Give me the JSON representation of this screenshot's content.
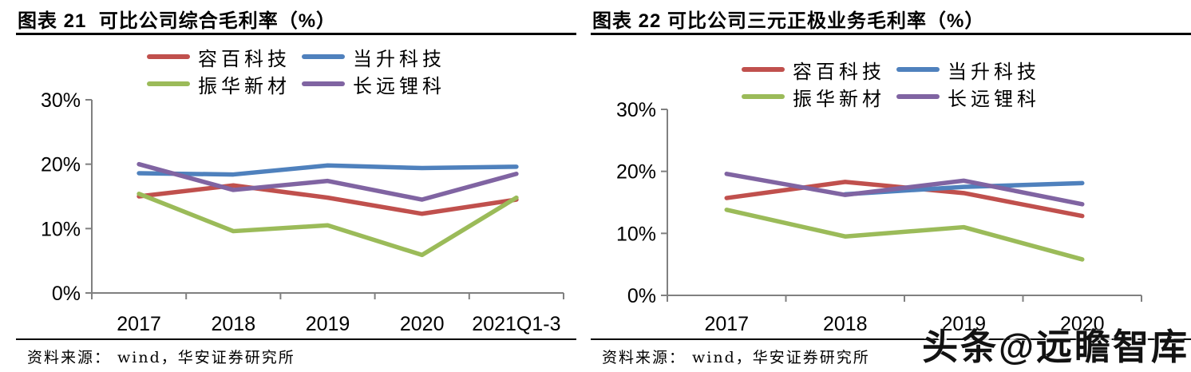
{
  "watermark": "头条@远瞻智库",
  "panels": [
    {
      "title": "图表 21  可比公司综合毛利率（%）",
      "source": "资料来源： wind，华安证券研究所"
    },
    {
      "title": "图表 22 可比公司三元正极业务毛利率（%）",
      "source": "资料来源： wind，华安证券研究所"
    }
  ],
  "chart_data": [
    {
      "type": "line",
      "title": "可比公司综合毛利率（%）",
      "categories": [
        "2017",
        "2018",
        "2019",
        "2020",
        "2021Q1-3"
      ],
      "series": [
        {
          "name": "容百科技",
          "color": "#C0504D",
          "values": [
            15.0,
            16.7,
            14.8,
            12.3,
            14.5
          ]
        },
        {
          "name": "当升科技",
          "color": "#4F81BD",
          "values": [
            18.6,
            18.4,
            19.8,
            19.4,
            19.6
          ]
        },
        {
          "name": "振华新材",
          "color": "#9BBB59",
          "values": [
            15.4,
            9.6,
            10.5,
            5.9,
            14.8
          ]
        },
        {
          "name": "长远锂科",
          "color": "#8064A2",
          "values": [
            20.0,
            16.0,
            17.4,
            14.5,
            18.5
          ]
        }
      ],
      "ylim": [
        0,
        30
      ],
      "yticks": [
        0,
        10,
        20,
        30
      ],
      "ytick_labels": [
        "0%",
        "10%",
        "20%",
        "30%"
      ],
      "legend_position": "top",
      "grid": false,
      "axis_color": "#808080"
    },
    {
      "type": "line",
      "title": "可比公司三元正极业务毛利率（%）",
      "categories": [
        "2017",
        "2018",
        "2019",
        "2020"
      ],
      "series": [
        {
          "name": "容百科技",
          "color": "#C0504D",
          "values": [
            15.7,
            18.3,
            16.5,
            12.8
          ]
        },
        {
          "name": "当升科技",
          "color": "#4F81BD",
          "values": [
            null,
            16.3,
            17.5,
            18.1
          ]
        },
        {
          "name": "振华新材",
          "color": "#9BBB59",
          "values": [
            13.8,
            9.5,
            11.0,
            5.8
          ]
        },
        {
          "name": "长远锂科",
          "color": "#8064A2",
          "values": [
            19.6,
            16.2,
            18.5,
            14.7
          ]
        }
      ],
      "ylim": [
        0,
        30
      ],
      "yticks": [
        0,
        10,
        20,
        30
      ],
      "ytick_labels": [
        "0%",
        "10%",
        "20%",
        "30%"
      ],
      "legend_position": "top",
      "grid": false,
      "axis_color": "#808080"
    }
  ]
}
